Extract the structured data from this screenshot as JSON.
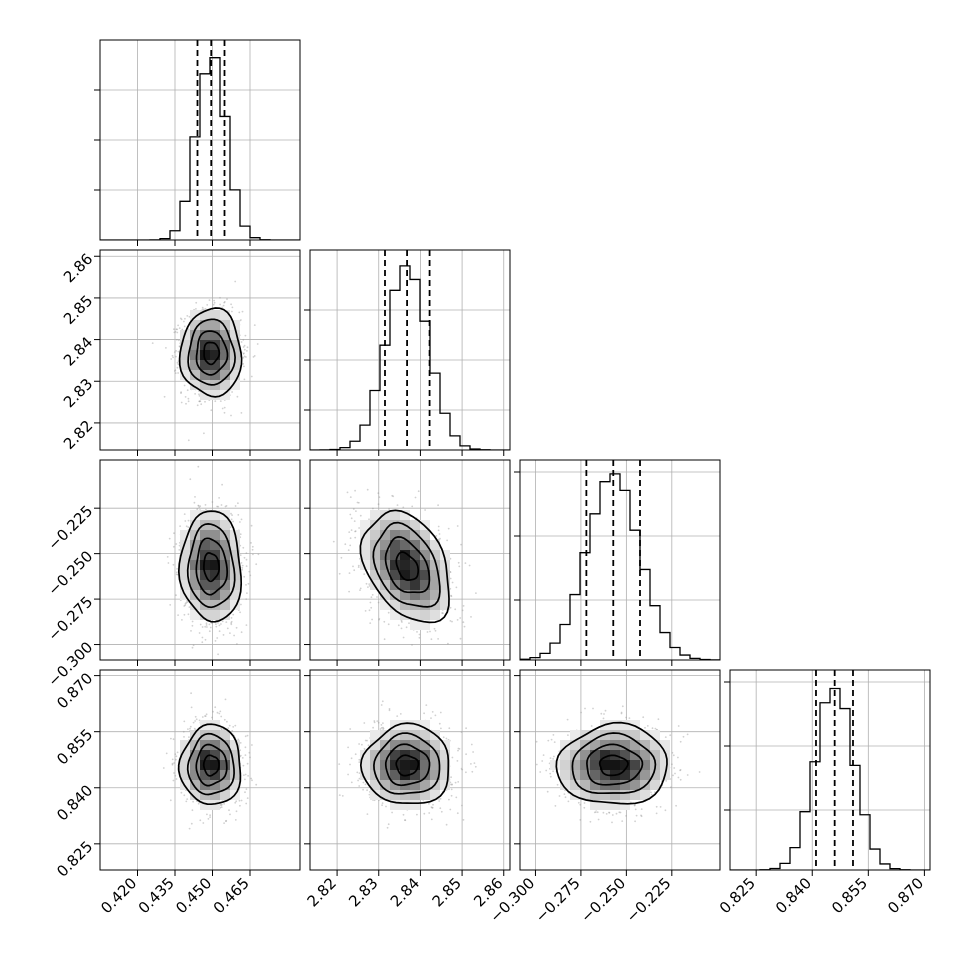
{
  "chart_data": {
    "type": "corner",
    "parameters": [
      {
        "mean": 0.4495,
        "std": 0.0058,
        "range": [
          0.405,
          0.485
        ],
        "ticks": [
          0.42,
          0.435,
          0.45,
          0.465
        ],
        "tick_labels": [
          "0.420",
          "0.435",
          "0.450",
          "0.465"
        ],
        "quantiles": [
          0.444,
          0.4495,
          0.4548
        ],
        "hist_ticks": [
          0.25,
          0.5,
          0.75
        ]
      },
      {
        "mean": 2.8368,
        "std": 0.005,
        "range": [
          2.8135,
          2.8615
        ],
        "ticks": [
          2.82,
          2.83,
          2.84,
          2.85,
          2.86
        ],
        "tick_labels": [
          "2.82",
          "2.83",
          "2.84",
          "2.85",
          "2.86"
        ],
        "quantiles": [
          2.8315,
          2.8368,
          2.8422
        ],
        "hist_ticks": [
          0.2,
          0.45,
          0.7
        ]
      },
      {
        "mean": -0.2572,
        "std": 0.0145,
        "range": [
          -0.3085,
          -0.1985
        ],
        "ticks": [
          -0.3,
          -0.275,
          -0.25,
          -0.225
        ],
        "tick_labels": [
          "−0.300",
          "−0.275",
          "−0.250",
          "−0.225"
        ],
        "quantiles": [
          -0.272,
          -0.2572,
          -0.2425
        ],
        "hist_ticks": [
          0.3,
          0.62,
          0.94
        ]
      },
      {
        "mean": 0.846,
        "std": 0.0051,
        "range": [
          0.818,
          0.8715
        ],
        "ticks": [
          0.825,
          0.84,
          0.855,
          0.87
        ],
        "tick_labels": [
          "0.825",
          "0.840",
          "0.855",
          "0.870"
        ],
        "quantiles": [
          0.841,
          0.846,
          0.8509
        ],
        "hist_ticks": [
          0.3,
          0.62,
          0.94
        ]
      }
    ],
    "correlations": [
      [
        1,
        0.0,
        -0.05,
        0.0
      ],
      [
        0.0,
        1,
        -0.35,
        0.0
      ],
      [
        -0.05,
        -0.35,
        1,
        0.03
      ],
      [
        0.0,
        0.0,
        0.03,
        1
      ]
    ],
    "contour_levels_sigma": [
      0.5,
      1.0,
      1.5,
      2.0
    ],
    "grid": true,
    "colors": {
      "line": "#000000",
      "grid": "#b0b0b0",
      "points": "#9a9a9a"
    }
  }
}
